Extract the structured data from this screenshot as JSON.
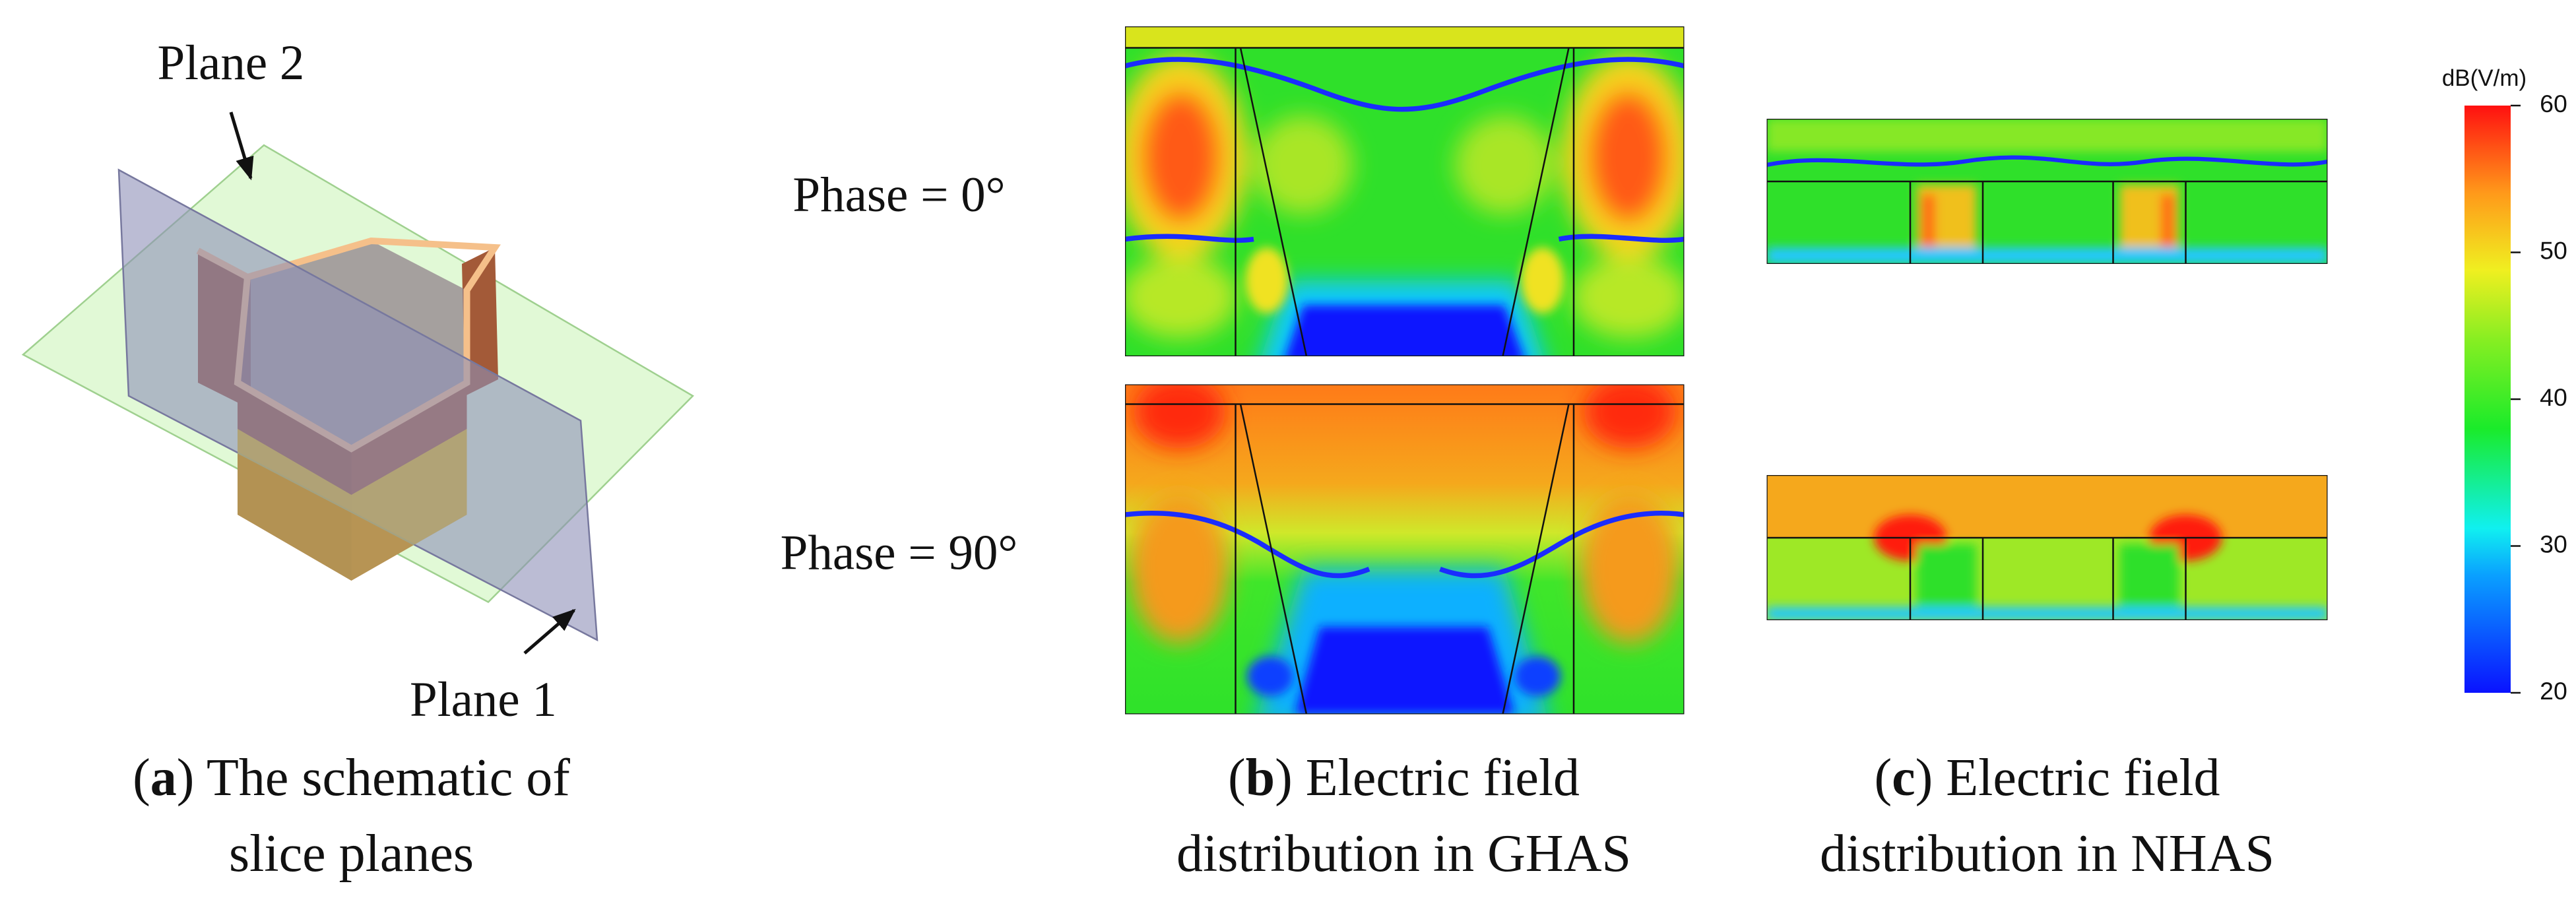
{
  "panel_a": {
    "plane_2": "Plane 2",
    "plane_1": "Plane 1"
  },
  "phase_labels": [
    "Phase = 0°",
    "Phase = 90°"
  ],
  "colorbar": {
    "unit": "dB(V/m)",
    "range": [
      20,
      60
    ],
    "ticks": [
      20,
      30,
      40,
      50,
      60
    ]
  },
  "captions": [
    {
      "open": "(",
      "letter": "a",
      "close": ") The schematic of",
      "line2": "slice planes"
    },
    {
      "open": "(",
      "letter": "b",
      "close": ") Electric field",
      "line2": "distribution in GHAS"
    },
    {
      "open": "(",
      "letter": "c",
      "close": ") Electric field",
      "line2": "distribution in NHAS"
    }
  ]
}
